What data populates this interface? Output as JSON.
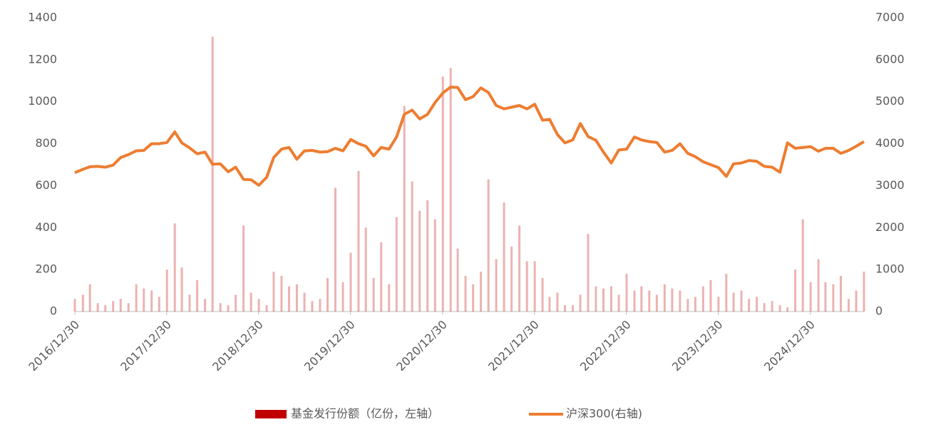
{
  "chart_data": {
    "type": "combo",
    "x": [
      "2016/12/30",
      "2017/01/31",
      "2017/02/28",
      "2017/03/31",
      "2017/04/30",
      "2017/05/31",
      "2017/06/30",
      "2017/07/31",
      "2017/08/31",
      "2017/09/30",
      "2017/10/31",
      "2017/11/30",
      "2017/12/31",
      "2018/01/31",
      "2018/02/28",
      "2018/03/31",
      "2018/04/30",
      "2018/05/31",
      "2018/06/30",
      "2018/07/31",
      "2018/08/31",
      "2018/09/30",
      "2018/10/31",
      "2018/11/30",
      "2018/12/31",
      "2019/01/31",
      "2019/02/28",
      "2019/03/31",
      "2019/04/30",
      "2019/05/31",
      "2019/06/30",
      "2019/07/31",
      "2019/08/31",
      "2019/09/30",
      "2019/10/31",
      "2019/11/30",
      "2019/12/31",
      "2020/01/31",
      "2020/02/29",
      "2020/03/31",
      "2020/04/30",
      "2020/05/31",
      "2020/06/30",
      "2020/07/31",
      "2020/08/31",
      "2020/09/30",
      "2020/10/31",
      "2020/11/30",
      "2020/12/31",
      "2021/01/31",
      "2021/02/28",
      "2021/03/31",
      "2021/04/30",
      "2021/05/31",
      "2021/06/30",
      "2021/07/31",
      "2021/08/31",
      "2021/09/30",
      "2021/10/31",
      "2021/11/30",
      "2021/12/31",
      "2022/01/31",
      "2022/02/28",
      "2022/03/31",
      "2022/04/30",
      "2022/05/31",
      "2022/06/30",
      "2022/07/31",
      "2022/08/31",
      "2022/09/30",
      "2022/10/31",
      "2022/11/30",
      "2022/12/31",
      "2023/01/31",
      "2023/02/28",
      "2023/03/31",
      "2023/04/30",
      "2023/05/31",
      "2023/06/30",
      "2023/07/31",
      "2023/08/31",
      "2023/09/30",
      "2023/10/31",
      "2023/11/30",
      "2023/12/31",
      "2024/01/31",
      "2024/02/29",
      "2024/03/31",
      "2024/04/30",
      "2024/05/31",
      "2024/06/30",
      "2024/07/31",
      "2024/08/31",
      "2024/09/30",
      "2024/10/31",
      "2024/11/30",
      "2024/12/31",
      "2025/01/31",
      "2025/02/28",
      "2025/03/31",
      "2025/04/30",
      "2025/05/31",
      "2025/06/30",
      "2025/07/31"
    ],
    "series": [
      {
        "name": "基金发行份额（亿份，左轴）",
        "type": "bar",
        "color": "#c00000",
        "values": [
          60,
          80,
          130,
          40,
          30,
          50,
          60,
          40,
          130,
          110,
          100,
          70,
          200,
          420,
          210,
          80,
          150,
          60,
          1310,
          40,
          30,
          80,
          410,
          90,
          60,
          30,
          190,
          170,
          120,
          130,
          90,
          50,
          60,
          160,
          590,
          140,
          280,
          670,
          400,
          160,
          330,
          130,
          450,
          980,
          620,
          480,
          530,
          440,
          1120,
          1160,
          300,
          170,
          130,
          190,
          630,
          250,
          520,
          310,
          410,
          240,
          240,
          160,
          70,
          90,
          30,
          30,
          80,
          370,
          120,
          110,
          120,
          80,
          180,
          100,
          120,
          100,
          80,
          130,
          110,
          100,
          60,
          70,
          120,
          150,
          70,
          180,
          90,
          100,
          60,
          70,
          40,
          50,
          30,
          20,
          200,
          440,
          140,
          250,
          140,
          130,
          170,
          60,
          100,
          190
        ]
      },
      {
        "name": "沪深300(右轴)",
        "type": "line",
        "axis": "y2",
        "color": "#ed7d31",
        "values": [
          3310,
          3390,
          3450,
          3460,
          3440,
          3490,
          3670,
          3740,
          3830,
          3840,
          4000,
          4000,
          4030,
          4280,
          4020,
          3900,
          3760,
          3800,
          3510,
          3520,
          3330,
          3440,
          3150,
          3140,
          3010,
          3200,
          3670,
          3870,
          3910,
          3630,
          3830,
          3840,
          3800,
          3810,
          3890,
          3830,
          4100,
          4000,
          3940,
          3710,
          3910,
          3870,
          4160,
          4700,
          4800,
          4590,
          4700,
          4980,
          5210,
          5350,
          5340,
          5050,
          5120,
          5330,
          5220,
          4910,
          4830,
          4870,
          4910,
          4830,
          4940,
          4560,
          4580,
          4220,
          4020,
          4090,
          4480,
          4170,
          4080,
          3800,
          3540,
          3850,
          3870,
          4160,
          4090,
          4050,
          4030,
          3800,
          3840,
          4000,
          3770,
          3690,
          3570,
          3500,
          3430,
          3220,
          3520,
          3540,
          3600,
          3580,
          3460,
          3440,
          3320,
          4020,
          3890,
          3910,
          3930,
          3820,
          3890,
          3890,
          3770,
          3840,
          3940,
          4050
        ]
      }
    ],
    "xlim": [
      "2016/12/30",
      "2025/07/31"
    ],
    "xticks": [
      "2016/12/30",
      "2017/12/30",
      "2018/12/30",
      "2019/12/30",
      "2020/12/30",
      "2021/12/30",
      "2022/12/30",
      "2023/12/30",
      "2024/12/30"
    ],
    "ylim": [
      0,
      1400
    ],
    "yticks": [
      0,
      200,
      400,
      600,
      800,
      1000,
      1200,
      1400
    ],
    "y2lim": [
      0,
      7000
    ],
    "y2ticks": [
      0,
      1000,
      2000,
      3000,
      4000,
      5000,
      6000,
      7000
    ],
    "legend": "bottom"
  }
}
